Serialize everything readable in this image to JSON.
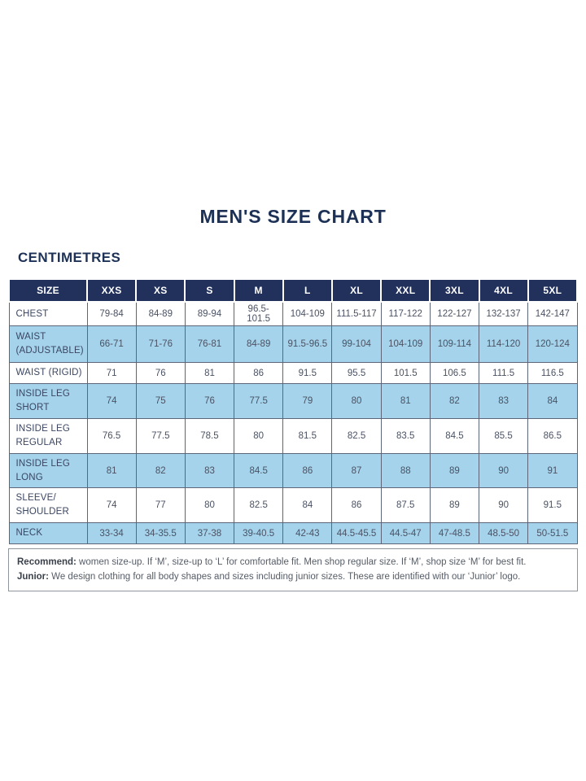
{
  "page": {
    "title": "MEN'S SIZE CHART",
    "units_label": "CENTIMETRES"
  },
  "table": {
    "columns": [
      "SIZE",
      "XXS",
      "XS",
      "S",
      "M",
      "L",
      "XL",
      "XXL",
      "3XL",
      "4XL",
      "5XL"
    ],
    "rows": [
      {
        "label": "CHEST",
        "values": [
          "79-84",
          "84-89",
          "89-94",
          "96.5-101.5",
          "104-109",
          "111.5-117",
          "117-122",
          "122-127",
          "132-137",
          "142-147"
        ]
      },
      {
        "label": "WAIST\n(ADJUSTABLE)",
        "values": [
          "66-71",
          "71-76",
          "76-81",
          "84-89",
          "91.5-96.5",
          "99-104",
          "104-109",
          "109-114",
          "114-120",
          "120-124"
        ]
      },
      {
        "label": "WAIST (RIGID)",
        "values": [
          "71",
          "76",
          "81",
          "86",
          "91.5",
          "95.5",
          "101.5",
          "106.5",
          "111.5",
          "116.5"
        ]
      },
      {
        "label": "INSIDE LEG\nSHORT",
        "values": [
          "74",
          "75",
          "76",
          "77.5",
          "79",
          "80",
          "81",
          "82",
          "83",
          "84"
        ]
      },
      {
        "label": "INSIDE LEG\nREGULAR",
        "values": [
          "76.5",
          "77.5",
          "78.5",
          "80",
          "81.5",
          "82.5",
          "83.5",
          "84.5",
          "85.5",
          "86.5"
        ]
      },
      {
        "label": "INSIDE LEG\nLONG",
        "values": [
          "81",
          "82",
          "83",
          "84.5",
          "86",
          "87",
          "88",
          "89",
          "90",
          "91"
        ]
      },
      {
        "label": "SLEEVE/\nSHOULDER",
        "values": [
          "74",
          "77",
          "80",
          "82.5",
          "84",
          "86",
          "87.5",
          "89",
          "90",
          "91.5"
        ]
      },
      {
        "label": "NECK",
        "values": [
          "33-34",
          "34-35.5",
          "37-38",
          "39-40.5",
          "42-43",
          "44.5-45.5",
          "44.5-47",
          "47-48.5",
          "48.5-50",
          "50-51.5"
        ]
      }
    ]
  },
  "footnote": {
    "recommend_label": "Recommend:",
    "recommend_text": " women size-up. If ‘M’, size-up to ‘L’ for comfortable fit. Men shop regular size. If ‘M’, shop size ‘M’ for best fit.",
    "junior_label": "Junior:",
    "junior_text": " We design clothing for all body shapes and sizes including junior sizes. These are identified with our ‘Junior’ logo."
  },
  "colors": {
    "header_bg": "#22315b",
    "title_navy": "#1d3156",
    "row_shaded_bg": "#a5d3eb",
    "cell_border": "#5c6678",
    "body_text": "#4b5263"
  }
}
